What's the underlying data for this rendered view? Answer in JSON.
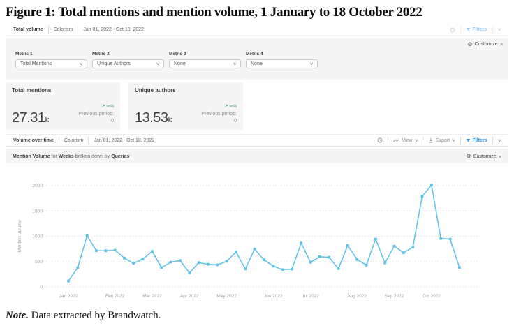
{
  "figure": {
    "title": "Figure 1: Total mentions and mention volume, 1 January to 18 October 2022",
    "note_label": "Note.",
    "note_text": "Data extracted by Brandwatch."
  },
  "colors": {
    "accent_blue": "#2196f3",
    "line_color": "#5bc2e7",
    "trend_green": "#2e9e5b",
    "axis_gray": "#9e9e9e",
    "grid_gray": "#e7e7e7"
  },
  "widget1": {
    "title": "Total volume",
    "query": "Colorism",
    "date_range": "Jan 01, 2022 - Oct 18, 2022",
    "filters_label": "Filters"
  },
  "customize": {
    "label": "Customize"
  },
  "metrics": {
    "selectors": [
      {
        "label": "Metric 1",
        "value": "Total Mentions"
      },
      {
        "label": "Metric 2",
        "value": "Unique Authors"
      },
      {
        "label": "Metric 3",
        "value": "None"
      },
      {
        "label": "Metric 4",
        "value": "None"
      }
    ],
    "cards": [
      {
        "title": "Total mentions",
        "value": "27.31",
        "unit": "k",
        "trend": "∞%",
        "previous_label": "Previous period:",
        "previous_value": "0"
      },
      {
        "title": "Unique authors",
        "value": "13.53",
        "unit": "k",
        "trend": "∞%",
        "previous_label": "Previous period:",
        "previous_value": "0"
      }
    ]
  },
  "widget2": {
    "title": "Volume over time",
    "query": "Colorism",
    "date_range": "Jan 01, 2022 - Oct 18, 2022",
    "view_label": "View",
    "export_label": "Export",
    "filters_label": "Filters"
  },
  "chart_header": {
    "volume_label": "Mention Volume",
    "for_text": "for",
    "weeks_label": "Weeks",
    "broken_text": "broken down by",
    "queries_label": "Queries"
  },
  "chart_data": {
    "type": "line",
    "title": "Mention Volume for Weeks broken down by Queries",
    "ylabel": "Mention Volume",
    "x_unit": "week",
    "x_start": "Jan 01, 2022",
    "x_end": "Oct 18, 2022",
    "yticks": [
      0,
      500,
      1000,
      1500,
      2000
    ],
    "ylim": [
      0,
      2150
    ],
    "grid": true,
    "legend": "none",
    "series": [
      {
        "name": "Colorism",
        "values": [
          115,
          380,
          1010,
          715,
          715,
          725,
          570,
          465,
          550,
          700,
          380,
          490,
          520,
          275,
          480,
          445,
          435,
          505,
          690,
          355,
          745,
          535,
          410,
          340,
          350,
          865,
          485,
          595,
          585,
          360,
          820,
          540,
          430,
          945,
          470,
          805,
          675,
          785,
          1790,
          2010,
          955,
          945,
          385
        ]
      }
    ],
    "month_ticks": [
      {
        "label": "Jan 2022",
        "week_index": 0
      },
      {
        "label": "Feb 2022",
        "week_index": 5
      },
      {
        "label": "Mar 2022",
        "week_index": 9
      },
      {
        "label": "Apr 2022",
        "week_index": 13
      },
      {
        "label": "May 2022",
        "week_index": 17
      },
      {
        "label": "Jun 2022",
        "week_index": 22
      },
      {
        "label": "Jul 2022",
        "week_index": 26
      },
      {
        "label": "Aug 2022",
        "week_index": 31
      },
      {
        "label": "Sep 2022",
        "week_index": 35
      },
      {
        "label": "Oct 2022",
        "week_index": 39
      }
    ]
  }
}
